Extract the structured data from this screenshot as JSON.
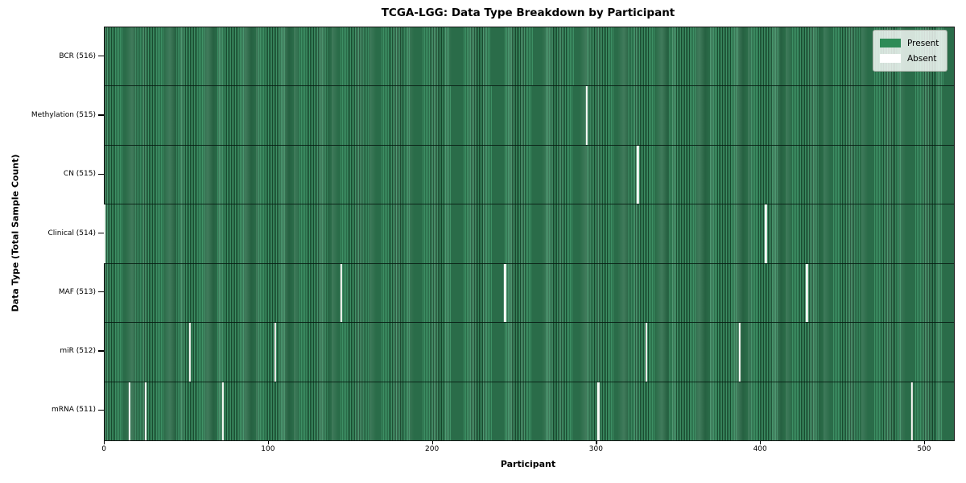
{
  "chart_data": {
    "type": "heatmap",
    "title": "TCGA-LGG: Data Type Breakdown by Participant",
    "xlabel": "Participant",
    "ylabel": "Data Type (Total Sample Count)",
    "n_participants": 516,
    "xlim": [
      -0.3,
      517.7
    ],
    "x_ticks": [
      0,
      100,
      200,
      300,
      400,
      500
    ],
    "grid": false,
    "legend_position": "upper right",
    "legend": [
      {
        "label": "Present",
        "color": "#2e8b57"
      },
      {
        "label": "Absent",
        "color": "#ffffff"
      }
    ],
    "colors": {
      "present_fill": "#2e8b57",
      "present_stripe_light": "#3d8f64",
      "bar_edge_dark": "#18492e",
      "absent_fill": "#fbfbf8",
      "row_separator": "#0a1f13",
      "legend_bg": "#dde6de"
    },
    "rows": [
      {
        "label": "BCR",
        "total": 516,
        "tick_label": "BCR (516)",
        "absent_participants": []
      },
      {
        "label": "Methylation",
        "total": 515,
        "tick_label": "Methylation (515)",
        "absent_participants": [
          294
        ]
      },
      {
        "label": "CN",
        "total": 515,
        "tick_label": "CN (515)",
        "absent_participants": [
          325
        ]
      },
      {
        "label": "Clinical",
        "total": 514,
        "tick_label": "Clinical (514)",
        "absent_participants": [
          0,
          403
        ]
      },
      {
        "label": "MAF",
        "total": 513,
        "tick_label": "MAF (513)",
        "absent_participants": [
          144,
          244,
          428
        ]
      },
      {
        "label": "miR",
        "total": 512,
        "tick_label": "miR (512)",
        "absent_participants": [
          52,
          104,
          330,
          387
        ]
      },
      {
        "label": "mRNA",
        "total": 511,
        "tick_label": "mRNA (511)",
        "absent_participants": [
          15,
          25,
          72,
          301,
          492
        ]
      }
    ]
  }
}
